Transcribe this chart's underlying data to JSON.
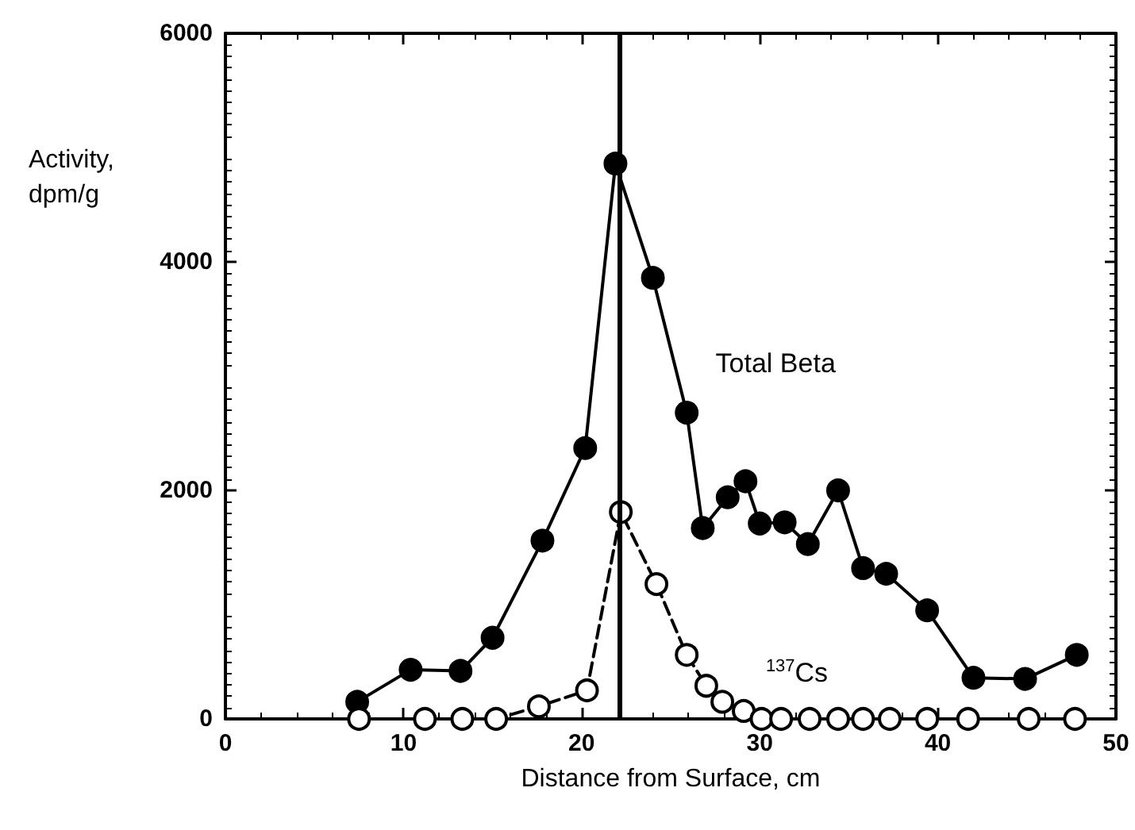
{
  "chart_data": {
    "type": "line",
    "xlabel": "Distance from Surface, cm",
    "ylabel": "Activity, dpm/g",
    "xlim": [
      0,
      50
    ],
    "xticks": [
      0,
      10,
      20,
      30,
      40,
      50
    ],
    "ylim": [
      0,
      6000
    ],
    "yticks": [
      0,
      2000,
      4000,
      6000
    ],
    "grid": false,
    "legend": false,
    "marker": "circle",
    "ref_lines": [
      {
        "axis": "x",
        "value": 22.1,
        "color": "#000000",
        "line_style": "solid"
      }
    ],
    "series": [
      {
        "name": "Total Beta",
        "color": "#000000",
        "line_style": "solid",
        "x": [
          7.4,
          10.4,
          13.2,
          15.0,
          17.8,
          20.2,
          21.9,
          24.0,
          25.9,
          26.8,
          28.2,
          29.2,
          30.0,
          31.4,
          32.7,
          34.4,
          35.8,
          37.1,
          39.4,
          42.0,
          44.9,
          47.8
        ],
        "values": [
          150,
          430,
          420,
          710,
          1560,
          2370,
          4860,
          3860,
          2680,
          1670,
          1940,
          2080,
          1710,
          1720,
          1530,
          2000,
          1320,
          1270,
          950,
          360,
          350,
          560
        ]
      },
      {
        "name": "$^{137}$Cs",
        "color": "#000000",
        "line_style": "dashed",
        "x": [
          7.5,
          11.2,
          13.3,
          15.2,
          17.6,
          20.3,
          22.2,
          24.2,
          25.9,
          27.0,
          27.9,
          29.1,
          30.1,
          31.2,
          32.8,
          34.4,
          35.8,
          37.3,
          39.4,
          41.7,
          45.1,
          47.7
        ],
        "values": [
          0,
          0,
          0,
          0,
          110,
          250,
          1810,
          1180,
          560,
          290,
          150,
          70,
          0,
          0,
          0,
          0,
          0,
          0,
          0,
          0,
          0,
          0
        ]
      }
    ]
  }
}
